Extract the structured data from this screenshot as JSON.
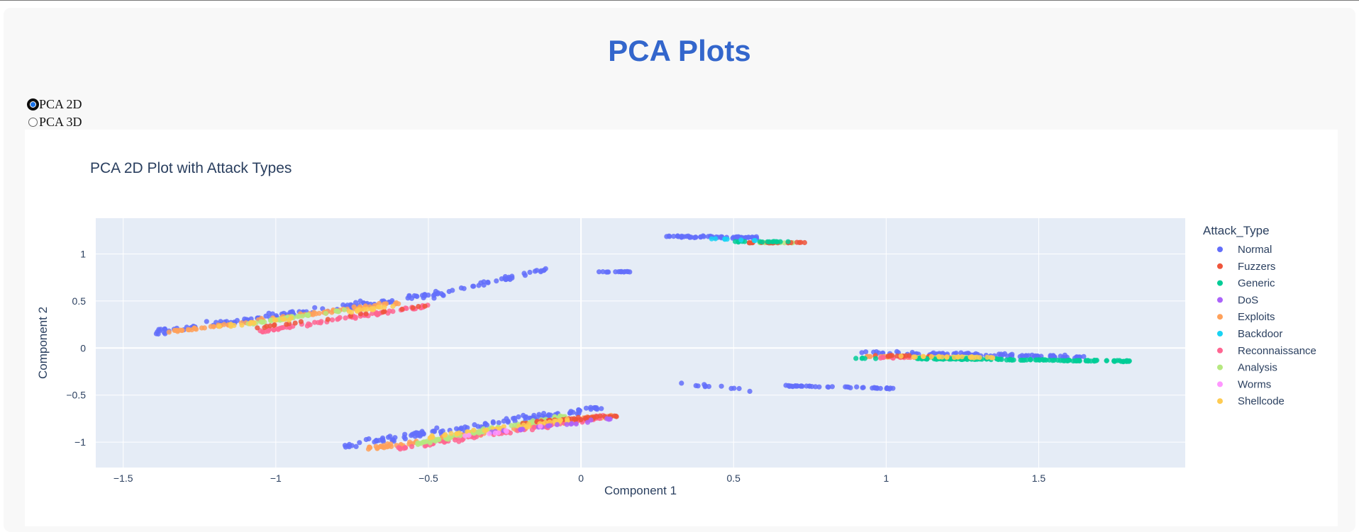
{
  "page": {
    "title": "PCA Plots"
  },
  "radio_options": [
    {
      "label": "PCA 2D",
      "selected": true
    },
    {
      "label": "PCA 3D",
      "selected": false
    }
  ],
  "chart_data": {
    "type": "scatter",
    "title": "PCA 2D Plot with Attack Types",
    "xlabel": "Component 1",
    "ylabel": "Component 2",
    "xlim": [
      -1.59,
      1.98
    ],
    "ylim": [
      -1.27,
      1.38
    ],
    "x_ticks": [
      -1.5,
      -1,
      -0.5,
      0,
      0.5,
      1,
      1.5
    ],
    "x_tick_labels": [
      "−1.5",
      "−1",
      "−0.5",
      "0",
      "0.5",
      "1",
      "1.5"
    ],
    "y_ticks": [
      -1,
      -0.5,
      0,
      0.5,
      1
    ],
    "y_tick_labels": [
      "−1",
      "−0.5",
      "0",
      "0.5",
      "1"
    ],
    "grid": true,
    "legend_title": "Attack_Type",
    "legend_position": "right",
    "plot_bg": "#e5ecf6",
    "series": [
      {
        "name": "Normal",
        "color": "#636efa"
      },
      {
        "name": "Fuzzers",
        "color": "#ef553b"
      },
      {
        "name": "Generic",
        "color": "#00cc96"
      },
      {
        "name": "DoS",
        "color": "#ab63fa"
      },
      {
        "name": "Exploits",
        "color": "#ffa15a"
      },
      {
        "name": "Backdoor",
        "color": "#19d3f3"
      },
      {
        "name": "Reconnaissance",
        "color": "#ff6692"
      },
      {
        "name": "Analysis",
        "color": "#b6e880"
      },
      {
        "name": "Worms",
        "color": "#ff97ff"
      },
      {
        "name": "Shellcode",
        "color": "#fecb52"
      }
    ],
    "clusters": [
      {
        "series": "Normal",
        "from": [
          -1.39,
          0.17
        ],
        "to": [
          -0.45,
          0.58
        ],
        "width": 0.09,
        "count": 110
      },
      {
        "series": "Normal",
        "from": [
          -0.5,
          0.55
        ],
        "to": [
          -0.1,
          0.85
        ],
        "width": 0.05,
        "count": 40
      },
      {
        "series": "Normal",
        "from": [
          -0.77,
          -1.03
        ],
        "to": [
          0.08,
          -0.63
        ],
        "width": 0.1,
        "count": 120
      },
      {
        "series": "Normal",
        "from": [
          0.28,
          1.19
        ],
        "to": [
          0.58,
          1.17
        ],
        "width": 0.03,
        "count": 60
      },
      {
        "series": "Normal",
        "from": [
          0.89,
          -0.04
        ],
        "to": [
          1.65,
          -0.1
        ],
        "width": 0.05,
        "count": 100
      },
      {
        "series": "Normal",
        "from": [
          0.66,
          -0.4
        ],
        "to": [
          1.03,
          -0.43
        ],
        "width": 0.02,
        "count": 45
      },
      {
        "series": "Normal",
        "from": [
          0.04,
          0.81
        ],
        "to": [
          0.17,
          0.81
        ],
        "width": 0.01,
        "count": 15
      },
      {
        "series": "Normal",
        "from": [
          0.32,
          -0.37
        ],
        "to": [
          0.55,
          -0.45
        ],
        "width": 0.05,
        "count": 12
      },
      {
        "series": "Exploits",
        "from": [
          -1.35,
          0.17
        ],
        "to": [
          -0.6,
          0.48
        ],
        "width": 0.05,
        "count": 90
      },
      {
        "series": "Exploits",
        "from": [
          -0.7,
          -1.07
        ],
        "to": [
          0.1,
          -0.72
        ],
        "width": 0.06,
        "count": 110
      },
      {
        "series": "Exploits",
        "from": [
          0.93,
          -0.09
        ],
        "to": [
          1.3,
          -0.11
        ],
        "width": 0.02,
        "count": 40
      },
      {
        "series": "Reconnaissance",
        "from": [
          -1.05,
          0.18
        ],
        "to": [
          -0.5,
          0.45
        ],
        "width": 0.05,
        "count": 70
      },
      {
        "series": "Reconnaissance",
        "from": [
          -0.6,
          -1.07
        ],
        "to": [
          0.1,
          -0.72
        ],
        "width": 0.06,
        "count": 80
      },
      {
        "series": "Reconnaissance",
        "from": [
          0.97,
          -0.1
        ],
        "to": [
          1.22,
          -0.1
        ],
        "width": 0.02,
        "count": 20
      },
      {
        "series": "Analysis",
        "from": [
          -1.1,
          0.25
        ],
        "to": [
          -0.75,
          0.42
        ],
        "width": 0.03,
        "count": 40
      },
      {
        "series": "Analysis",
        "from": [
          -0.55,
          -1.02
        ],
        "to": [
          -0.05,
          -0.72
        ],
        "width": 0.05,
        "count": 80
      },
      {
        "series": "Analysis",
        "from": [
          0.55,
          1.12
        ],
        "to": [
          0.7,
          1.12
        ],
        "width": 0.01,
        "count": 15
      },
      {
        "series": "Analysis",
        "from": [
          1.1,
          -0.1
        ],
        "to": [
          1.3,
          -0.1
        ],
        "width": 0.015,
        "count": 20
      },
      {
        "series": "Fuzzers",
        "from": [
          -0.2,
          -0.8
        ],
        "to": [
          0.12,
          -0.72
        ],
        "width": 0.04,
        "count": 40
      },
      {
        "series": "Fuzzers",
        "from": [
          0.55,
          1.12
        ],
        "to": [
          0.73,
          1.12
        ],
        "width": 0.01,
        "count": 20
      },
      {
        "series": "Fuzzers",
        "from": [
          -1.1,
          0.2
        ],
        "to": [
          -0.5,
          0.45
        ],
        "width": 0.04,
        "count": 20
      },
      {
        "series": "Fuzzers",
        "from": [
          0.94,
          -0.08
        ],
        "to": [
          1.15,
          -0.09
        ],
        "width": 0.02,
        "count": 15
      },
      {
        "series": "Generic",
        "from": [
          1.1,
          -0.11
        ],
        "to": [
          1.8,
          -0.14
        ],
        "width": 0.02,
        "count": 130
      },
      {
        "series": "Generic",
        "from": [
          0.5,
          1.13
        ],
        "to": [
          0.68,
          1.13
        ],
        "width": 0.01,
        "count": 15
      },
      {
        "series": "Generic",
        "from": [
          0.9,
          -0.11
        ],
        "to": [
          1.0,
          -0.11
        ],
        "width": 0.01,
        "count": 5
      },
      {
        "series": "Shellcode",
        "from": [
          -1.2,
          0.22
        ],
        "to": [
          -0.6,
          0.45
        ],
        "width": 0.04,
        "count": 30
      },
      {
        "series": "Shellcode",
        "from": [
          -0.5,
          -0.95
        ],
        "to": [
          0.0,
          -0.75
        ],
        "width": 0.05,
        "count": 40
      },
      {
        "series": "Shellcode",
        "from": [
          1.05,
          -0.09
        ],
        "to": [
          1.35,
          -0.1
        ],
        "width": 0.02,
        "count": 25
      },
      {
        "series": "DoS",
        "from": [
          -0.3,
          -0.9
        ],
        "to": [
          0.1,
          -0.75
        ],
        "width": 0.04,
        "count": 20
      },
      {
        "series": "Backdoor",
        "from": [
          0.38,
          1.17
        ],
        "to": [
          0.6,
          1.14
        ],
        "width": 0.01,
        "count": 8
      },
      {
        "series": "Worms",
        "from": [
          -0.4,
          -0.95
        ],
        "to": [
          0.0,
          -0.78
        ],
        "width": 0.03,
        "count": 8
      }
    ]
  }
}
